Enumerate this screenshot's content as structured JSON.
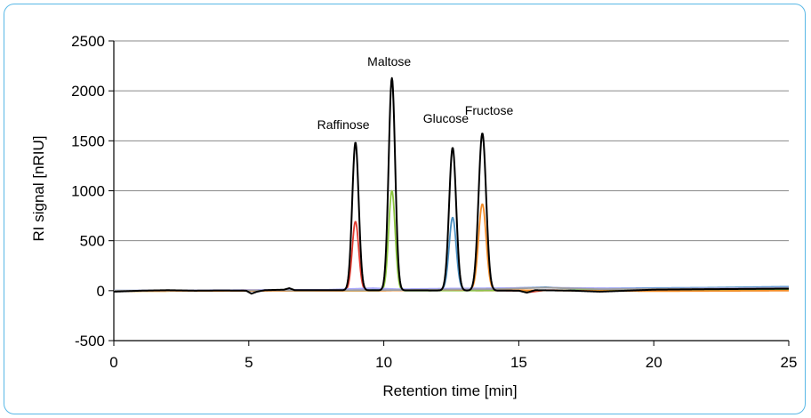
{
  "chart_data": {
    "type": "line",
    "title": "",
    "xlabel": "Retention time [min]",
    "ylabel": "RI signal [nRIU]",
    "xlim": [
      0,
      25
    ],
    "ylim": [
      -500,
      2500
    ],
    "x_ticks": [
      0,
      5,
      10,
      15,
      20,
      25
    ],
    "y_ticks": [
      -500,
      0,
      500,
      1000,
      1500,
      2000,
      2500
    ],
    "x_tick_labels": [
      "0",
      "5",
      "10",
      "15",
      "20",
      "25"
    ],
    "y_tick_labels": [
      "-500",
      "0",
      "500",
      "1000",
      "1500",
      "2000",
      "2500"
    ],
    "grid": "horizontal",
    "legend": "none",
    "annotations": [
      {
        "text": "Raffinose",
        "x": 8.5,
        "y": 1620
      },
      {
        "text": "Maltose",
        "x": 10.2,
        "y": 2250
      },
      {
        "text": "Glucose",
        "x": 12.3,
        "y": 1680
      },
      {
        "text": "Fructose",
        "x": 13.9,
        "y": 1760
      }
    ],
    "series": [
      {
        "color": "#000000",
        "baseline": [
          [
            0,
            -10
          ],
          [
            1,
            0
          ],
          [
            2,
            5
          ],
          [
            3,
            0
          ],
          [
            4,
            2
          ],
          [
            4.9,
            0
          ],
          [
            5.1,
            -30
          ],
          [
            5.3,
            -10
          ],
          [
            5.6,
            5
          ],
          [
            6.3,
            10
          ],
          [
            6.5,
            25
          ],
          [
            6.7,
            5
          ],
          [
            8,
            5
          ],
          [
            15,
            0
          ],
          [
            15.3,
            -20
          ],
          [
            15.6,
            5
          ],
          [
            17,
            0
          ],
          [
            18,
            -10
          ],
          [
            20,
            10
          ],
          [
            22,
            15
          ],
          [
            25,
            20
          ]
        ],
        "peaks": [
          {
            "center": 8.95,
            "height": 1480,
            "width": 0.12
          },
          {
            "center": 10.3,
            "height": 2125,
            "width": 0.12
          },
          {
            "center": 12.55,
            "height": 1430,
            "width": 0.13
          },
          {
            "center": 13.65,
            "height": 1575,
            "width": 0.14
          }
        ]
      },
      {
        "color": "#e03c31",
        "baseline": [
          [
            0,
            -5
          ],
          [
            5,
            5
          ],
          [
            8.5,
            0
          ],
          [
            9.6,
            5
          ],
          [
            15,
            0
          ],
          [
            15.4,
            -15
          ],
          [
            16,
            5
          ],
          [
            20,
            0
          ],
          [
            25,
            10
          ]
        ],
        "peaks": [
          {
            "center": 8.95,
            "height": 690,
            "width": 0.12
          }
        ]
      },
      {
        "color": "#8cc63f",
        "baseline": [
          [
            0,
            -5
          ],
          [
            5,
            0
          ],
          [
            9.5,
            0
          ],
          [
            11,
            0
          ],
          [
            20,
            5
          ],
          [
            25,
            10
          ]
        ],
        "peaks": [
          {
            "center": 10.3,
            "height": 1000,
            "width": 0.12
          }
        ]
      },
      {
        "color": "#4a90c2",
        "baseline": [
          [
            0,
            0
          ],
          [
            8,
            0
          ],
          [
            10,
            10
          ],
          [
            12,
            10
          ],
          [
            14,
            20
          ],
          [
            16,
            35
          ],
          [
            17,
            20
          ],
          [
            19,
            25
          ],
          [
            22,
            30
          ],
          [
            25,
            40
          ]
        ],
        "peaks": [
          {
            "center": 12.55,
            "height": 720,
            "width": 0.13
          }
        ]
      },
      {
        "color": "#f28c28",
        "baseline": [
          [
            0,
            -5
          ],
          [
            10,
            0
          ],
          [
            12,
            10
          ],
          [
            15,
            5
          ],
          [
            17,
            0
          ],
          [
            20,
            -5
          ],
          [
            25,
            0
          ]
        ],
        "peaks": [
          {
            "center": 13.65,
            "height": 860,
            "width": 0.14
          }
        ]
      },
      {
        "color": "#a9a9ff",
        "baseline": [
          [
            0,
            0
          ],
          [
            8,
            10
          ],
          [
            9.6,
            25
          ],
          [
            10.5,
            15
          ],
          [
            12,
            20
          ],
          [
            14,
            25
          ],
          [
            16,
            30
          ],
          [
            20,
            20
          ],
          [
            25,
            30
          ]
        ],
        "peaks": []
      },
      {
        "color": "#9e9e9e",
        "baseline": [
          [
            0,
            0
          ],
          [
            10,
            5
          ],
          [
            14,
            15
          ],
          [
            16,
            30
          ],
          [
            18,
            15
          ],
          [
            22,
            20
          ],
          [
            25,
            25
          ]
        ],
        "peaks": []
      }
    ]
  }
}
